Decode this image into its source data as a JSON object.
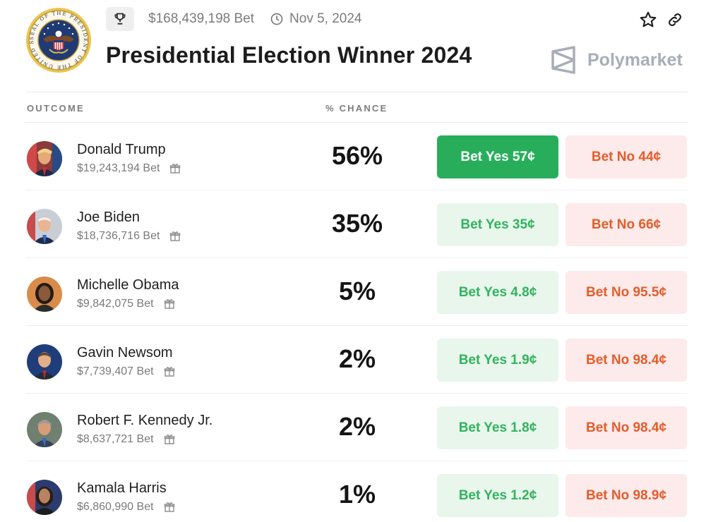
{
  "header": {
    "volume": "$168,439,198 Bet",
    "date": "Nov 5, 2024",
    "title": "Presidential Election Winner 2024",
    "brand": "Polymarket",
    "seal_text": "SEAL OF THE PRESIDENT OF THE UNITED STATES"
  },
  "columns": {
    "outcome": "OUTCOME",
    "chance": "% CHANCE"
  },
  "colors": {
    "yes_active_bg": "#28ae5b",
    "yes_bg": "#e8f6ec",
    "yes_text": "#33b35f",
    "no_bg": "#fdeaea",
    "no_text": "#e25d2b"
  },
  "rows": [
    {
      "name": "Donald Trump",
      "volume": "$19,243,194 Bet",
      "chance": "56%",
      "yes": "Bet Yes 57¢",
      "no": "Bet No 44¢",
      "selected": true
    },
    {
      "name": "Joe Biden",
      "volume": "$18,736,716 Bet",
      "chance": "35%",
      "yes": "Bet Yes 35¢",
      "no": "Bet No 66¢",
      "selected": false
    },
    {
      "name": "Michelle Obama",
      "volume": "$9,842,075 Bet",
      "chance": "5%",
      "yes": "Bet Yes 4.8¢",
      "no": "Bet No 95.5¢",
      "selected": false
    },
    {
      "name": "Gavin Newsom",
      "volume": "$7,739,407 Bet",
      "chance": "2%",
      "yes": "Bet Yes 1.9¢",
      "no": "Bet No 98.4¢",
      "selected": false
    },
    {
      "name": "Robert F. Kennedy Jr.",
      "volume": "$8,637,721 Bet",
      "chance": "2%",
      "yes": "Bet Yes 1.8¢",
      "no": "Bet No 98.4¢",
      "selected": false
    },
    {
      "name": "Kamala Harris",
      "volume": "$6,860,990 Bet",
      "chance": "1%",
      "yes": "Bet Yes 1.2¢",
      "no": "Bet No 98.9¢",
      "selected": false
    }
  ]
}
